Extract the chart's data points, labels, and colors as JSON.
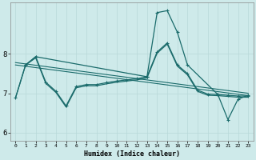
{
  "background_color": "#ceeaea",
  "grid_color": "#b8d8d8",
  "line_color": "#1a6b6b",
  "xlabel": "Humidex (Indice chaleur)",
  "ylim": [
    5.8,
    9.3
  ],
  "xlim": [
    -0.5,
    23.5
  ],
  "yticks": [
    6,
    7,
    8
  ],
  "xticks": [
    0,
    1,
    2,
    3,
    4,
    5,
    6,
    7,
    8,
    9,
    10,
    11,
    12,
    13,
    14,
    15,
    16,
    17,
    18,
    19,
    20,
    21,
    22,
    23
  ],
  "trend1": {
    "x": [
      0,
      23
    ],
    "y": [
      7.78,
      7.0
    ]
  },
  "trend2": {
    "x": [
      0,
      23
    ],
    "y": [
      7.72,
      6.94
    ]
  },
  "series_main_x": [
    0,
    1,
    2,
    3,
    4,
    5,
    6,
    7,
    8,
    9,
    10,
    11,
    12,
    13,
    14,
    15,
    16,
    17,
    18,
    19,
    20,
    21,
    22,
    23
  ],
  "series_main_y": [
    6.88,
    7.72,
    7.93,
    7.28,
    7.05,
    6.68,
    7.17,
    7.22,
    7.22,
    7.27,
    7.31,
    7.34,
    7.37,
    7.42,
    8.05,
    8.28,
    7.72,
    7.5,
    7.08,
    6.98,
    6.97,
    6.95,
    6.93,
    6.93
  ],
  "series_spike_x": [
    1,
    2,
    13,
    14,
    15,
    16,
    17,
    20,
    21,
    22,
    23
  ],
  "series_spike_y": [
    7.72,
    7.93,
    7.42,
    9.05,
    9.1,
    8.55,
    7.72,
    6.97,
    6.33,
    6.85,
    6.95
  ],
  "series_flat_x": [
    0,
    1,
    2,
    3,
    4,
    5,
    6,
    7,
    8,
    9,
    10,
    11,
    12,
    13,
    14,
    15,
    16,
    17,
    18,
    19,
    20,
    21,
    22,
    23
  ],
  "series_flat_y": [
    6.88,
    7.72,
    7.9,
    7.25,
    7.02,
    6.65,
    7.14,
    7.19,
    7.19,
    7.24,
    7.28,
    7.31,
    7.34,
    7.39,
    8.02,
    8.25,
    7.69,
    7.47,
    7.05,
    6.95,
    6.94,
    6.92,
    6.9,
    6.9
  ]
}
